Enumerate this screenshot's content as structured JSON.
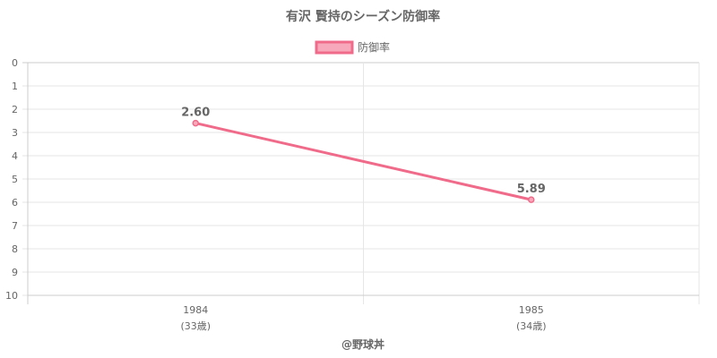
{
  "chart_data": {
    "type": "line",
    "title": "有沢 賢持のシーズン防御率",
    "categories": [
      "1984",
      "1985"
    ],
    "category_sublabels": [
      "(33歳)",
      "(34歳)"
    ],
    "series": [
      {
        "name": "防御率",
        "values": [
          2.6,
          5.89
        ],
        "data_labels": [
          "2.60",
          "5.89"
        ],
        "color": "#f06a8a",
        "fill_color": "#f7a8ba"
      }
    ],
    "y_ticks": [
      "0",
      "1",
      "2",
      "3",
      "4",
      "5",
      "6",
      "7",
      "8",
      "9",
      "10"
    ],
    "ylim": [
      0,
      10
    ],
    "y_reversed": true,
    "grid": true,
    "legend_position": "top",
    "credit": "@野球丼"
  }
}
